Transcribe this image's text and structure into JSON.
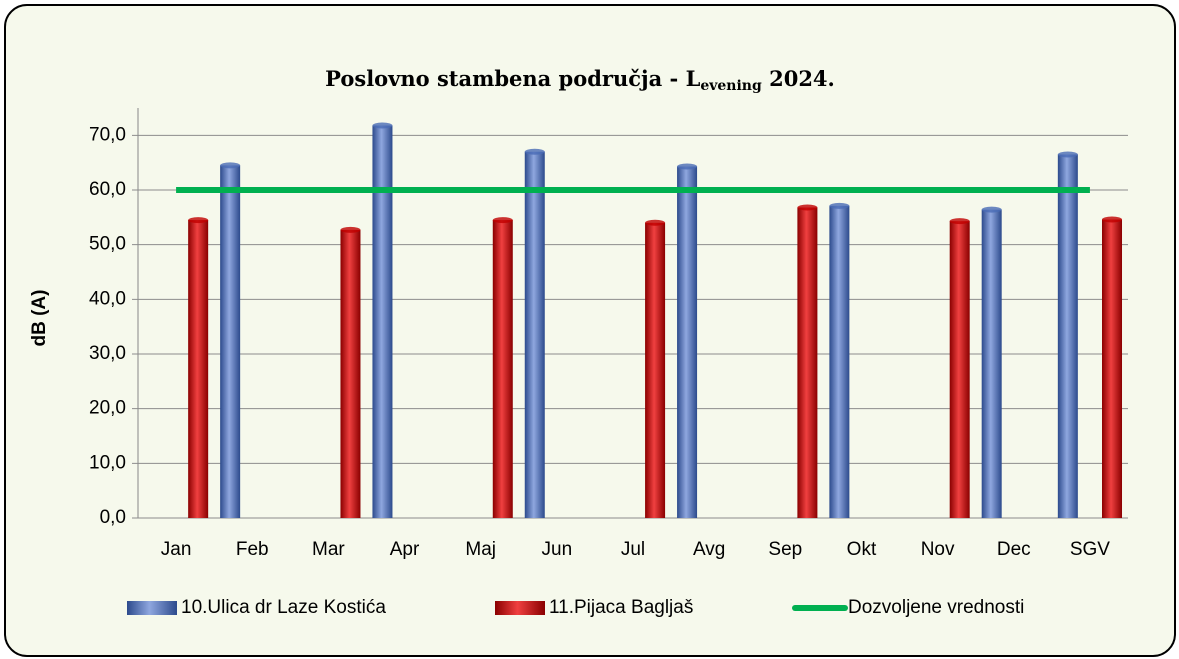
{
  "chart_data": {
    "type": "bar",
    "title": {
      "text": "Poslovno stambena područja - L",
      "subscript": "evening",
      "suffix": " 2024."
    },
    "ylabel": "dB (A)",
    "categories": [
      "Jan",
      "Feb",
      "Mar",
      "Apr",
      "Maj",
      "Jun",
      "Jul",
      "Avg",
      "Sep",
      "Okt",
      "Nov",
      "Dec",
      "SGV"
    ],
    "series": [
      {
        "name": "10.Ulica dr Laze Kostića",
        "color": "#4a6cb5",
        "values": [
          null,
          64.5,
          null,
          71.8,
          null,
          67.0,
          null,
          64.3,
          null,
          57.1,
          null,
          56.4,
          66.5
        ]
      },
      {
        "name": "11.Pijaca Bagljaš",
        "color": "#c00000",
        "values": [
          54.5,
          null,
          52.7,
          null,
          54.5,
          null,
          54.0,
          null,
          56.8,
          null,
          54.3,
          null,
          54.6
        ]
      }
    ],
    "limit": {
      "name": "Dozvoljene vrednosti",
      "color": "#00b050",
      "value": 60
    },
    "ylim": [
      0,
      75
    ],
    "yticks": [
      {
        "value": 0,
        "label": "0,0"
      },
      {
        "value": 10,
        "label": "10,0"
      },
      {
        "value": 20,
        "label": "20,0"
      },
      {
        "value": 30,
        "label": "30,0"
      },
      {
        "value": 40,
        "label": "40,0"
      },
      {
        "value": 50,
        "label": "50,0"
      },
      {
        "value": 60,
        "label": "60,0"
      },
      {
        "value": 70,
        "label": "70,0"
      }
    ],
    "grid": true,
    "legend": "bottom"
  }
}
